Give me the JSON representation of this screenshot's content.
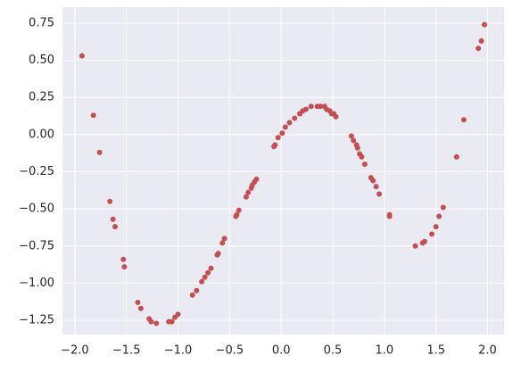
{
  "chart_data": {
    "type": "scatter",
    "color": "#c44e52",
    "grid": true,
    "x": [
      -1.93,
      -1.82,
      -1.76,
      -1.66,
      -1.63,
      -1.61,
      -1.53,
      -1.52,
      -1.39,
      -1.36,
      -1.28,
      -1.26,
      -1.21,
      -1.09,
      -1.06,
      -1.03,
      -1.0,
      -0.86,
      -0.82,
      -0.77,
      -0.74,
      -0.71,
      -0.68,
      -0.62,
      -0.61,
      -0.57,
      -0.55,
      -0.44,
      -0.43,
      -0.41,
      -0.34,
      -0.32,
      -0.29,
      -0.28,
      -0.26,
      -0.24,
      -0.07,
      -0.06,
      -0.03,
      0.01,
      0.04,
      0.08,
      0.13,
      0.18,
      0.21,
      0.24,
      0.29,
      0.35,
      0.38,
      0.42,
      0.44,
      0.47,
      0.49,
      0.51,
      0.53,
      0.68,
      0.7,
      0.73,
      0.74,
      0.76,
      0.78,
      0.81,
      0.87,
      0.89,
      0.92,
      0.95,
      1.05,
      1.05,
      1.3,
      1.37,
      1.39,
      1.46,
      1.5,
      1.53,
      1.57,
      1.7,
      1.77,
      1.91,
      1.94,
      1.97
    ],
    "y": [
      0.53,
      0.13,
      -0.12,
      -0.45,
      -0.57,
      -0.62,
      -0.84,
      -0.89,
      -1.13,
      -1.17,
      -1.24,
      -1.26,
      -1.27,
      -1.26,
      -1.26,
      -1.23,
      -1.21,
      -1.08,
      -1.05,
      -0.99,
      -0.96,
      -0.93,
      -0.9,
      -0.81,
      -0.8,
      -0.73,
      -0.7,
      -0.55,
      -0.54,
      -0.51,
      -0.42,
      -0.39,
      -0.36,
      -0.34,
      -0.32,
      -0.3,
      -0.08,
      -0.07,
      -0.02,
      0.01,
      0.05,
      0.08,
      0.11,
      0.14,
      0.16,
      0.17,
      0.19,
      0.19,
      0.19,
      0.19,
      0.17,
      0.16,
      0.14,
      0.14,
      0.12,
      -0.01,
      -0.04,
      -0.07,
      -0.09,
      -0.13,
      -0.15,
      -0.2,
      -0.29,
      -0.31,
      -0.35,
      -0.4,
      -0.54,
      -0.55,
      -0.75,
      -0.73,
      -0.72,
      -0.67,
      -0.62,
      -0.55,
      -0.49,
      -0.15,
      0.1,
      0.58,
      0.63,
      0.74
    ],
    "xlim": [
      -2.12,
      2.16
    ],
    "ylim": [
      -1.346,
      0.858
    ],
    "xticks": [
      {
        "value": -2.0,
        "label": "−2.0"
      },
      {
        "value": -1.5,
        "label": "−1.5"
      },
      {
        "value": -1.0,
        "label": "−1.0"
      },
      {
        "value": -0.5,
        "label": "−0.5"
      },
      {
        "value": 0.0,
        "label": "0.0"
      },
      {
        "value": 0.5,
        "label": "0.5"
      },
      {
        "value": 1.0,
        "label": "1.0"
      },
      {
        "value": 1.5,
        "label": "1.5"
      },
      {
        "value": 2.0,
        "label": "2.0"
      }
    ],
    "yticks": [
      {
        "value": 0.75,
        "label": "0.75"
      },
      {
        "value": 0.5,
        "label": "0.50"
      },
      {
        "value": 0.25,
        "label": "0.25"
      },
      {
        "value": 0.0,
        "label": "0.00"
      },
      {
        "value": -0.25,
        "label": "−0.25"
      },
      {
        "value": -0.5,
        "label": "−0.50"
      },
      {
        "value": -0.75,
        "label": "−0.75"
      },
      {
        "value": -1.0,
        "label": "−1.00"
      },
      {
        "value": -1.25,
        "label": "−1.25"
      }
    ]
  }
}
